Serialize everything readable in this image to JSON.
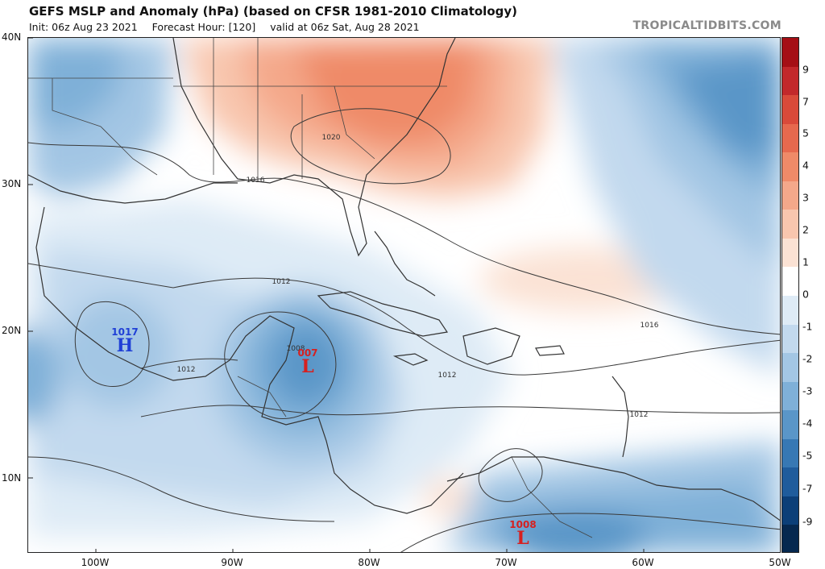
{
  "header": {
    "title": "GEFS MSLP and Anomaly (hPa) (based on CFSR 1981-2010 Climatology)",
    "init": "Init: 06z Aug 23 2021",
    "forecast_hour": "Forecast Hour: [120]",
    "valid": "valid at 06z Sat, Aug 28 2021",
    "brand": "TROPICALTIDBITS.COM"
  },
  "map": {
    "lat_labels": [
      "40N",
      "30N",
      "20N",
      "10N"
    ],
    "lon_labels": [
      "100W",
      "90W",
      "80W",
      "70W",
      "60W",
      "50W"
    ],
    "colors": {
      "land_outline": "#333333",
      "isobar": "#3a3a3a",
      "high_marker": "#1f3fd6",
      "low_marker": "#d62020"
    },
    "pressure_systems": [
      {
        "type": "high",
        "value": "1017",
        "letter": "H"
      },
      {
        "type": "low",
        "value": "007",
        "letter": "L"
      },
      {
        "type": "low",
        "value": "1008",
        "letter": "L"
      }
    ],
    "contour_labels": [
      "1020",
      "1016",
      "1012",
      "1016",
      "1012",
      "1008",
      "1012",
      "1012"
    ]
  },
  "colorbar": {
    "labels": [
      "9",
      "7",
      "5",
      "4",
      "3",
      "2",
      "1",
      "0",
      "-1",
      "-2",
      "-3",
      "-4",
      "-5",
      "-7",
      "-9"
    ],
    "colors": [
      "#a50f15",
      "#c2282b",
      "#d94a3a",
      "#e6694e",
      "#ef8a68",
      "#f4a88a",
      "#f8c6ae",
      "#fbe2d4",
      "#ffffff",
      "#deebf6",
      "#c2d9ee",
      "#a3c6e4",
      "#7fb0d8",
      "#5a96c8",
      "#3778b4",
      "#1f5c9c",
      "#0c3f78",
      "#06284f"
    ]
  }
}
